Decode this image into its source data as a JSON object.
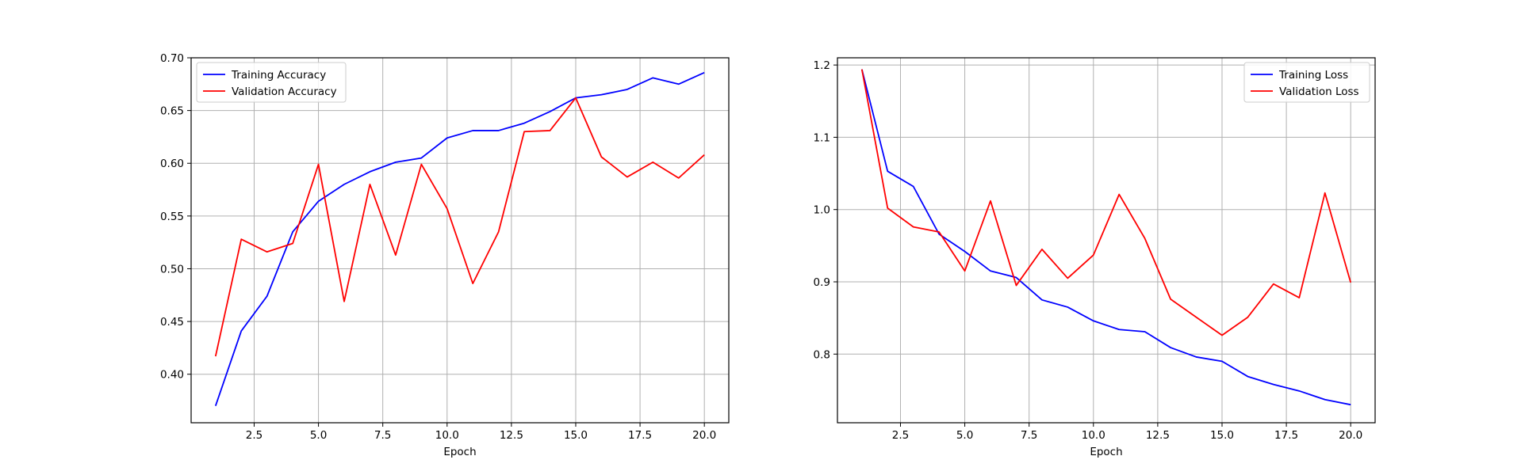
{
  "chart_data": [
    {
      "type": "line",
      "title": "",
      "xlabel": "Epoch",
      "ylabel": "",
      "xlim": [
        0.05,
        20.95
      ],
      "ylim": [
        0.354,
        0.7
      ],
      "xticks": [
        2.5,
        5.0,
        7.5,
        10.0,
        12.5,
        15.0,
        17.5,
        20.0
      ],
      "xtick_labels": [
        "2.5",
        "5.0",
        "7.5",
        "10.0",
        "12.5",
        "15.0",
        "17.5",
        "20.0"
      ],
      "yticks": [
        0.4,
        0.45,
        0.5,
        0.55,
        0.6,
        0.65,
        0.7
      ],
      "ytick_labels": [
        "0.40",
        "0.45",
        "0.50",
        "0.55",
        "0.60",
        "0.65",
        "0.70"
      ],
      "grid": true,
      "legend": "upper-left",
      "x": [
        1,
        2,
        3,
        4,
        5,
        6,
        7,
        8,
        9,
        10,
        11,
        12,
        13,
        14,
        15,
        16,
        17,
        18,
        19,
        20
      ],
      "series": [
        {
          "name": "Training Accuracy",
          "color": "#0000ff",
          "values": [
            0.37,
            0.441,
            0.474,
            0.535,
            0.564,
            0.58,
            0.592,
            0.601,
            0.605,
            0.624,
            0.631,
            0.631,
            0.638,
            0.649,
            0.662,
            0.665,
            0.67,
            0.681,
            0.675,
            0.686
          ]
        },
        {
          "name": "Validation Accuracy",
          "color": "#ff0000",
          "values": [
            0.417,
            0.528,
            0.516,
            0.524,
            0.599,
            0.469,
            0.58,
            0.513,
            0.599,
            0.557,
            0.486,
            0.535,
            0.63,
            0.631,
            0.662,
            0.606,
            0.587,
            0.601,
            0.586,
            0.608
          ]
        }
      ]
    },
    {
      "type": "line",
      "title": "",
      "xlabel": "Epoch",
      "ylabel": "",
      "xlim": [
        0.05,
        20.95
      ],
      "ylim": [
        0.705,
        1.21
      ],
      "xticks": [
        2.5,
        5.0,
        7.5,
        10.0,
        12.5,
        15.0,
        17.5,
        20.0
      ],
      "xtick_labels": [
        "2.5",
        "5.0",
        "7.5",
        "10.0",
        "12.5",
        "15.0",
        "17.5",
        "20.0"
      ],
      "yticks": [
        0.8,
        0.9,
        1.0,
        1.1,
        1.2
      ],
      "ytick_labels": [
        "0.8",
        "0.9",
        "1.0",
        "1.1",
        "1.2"
      ],
      "grid": true,
      "legend": "upper-right",
      "x": [
        1,
        2,
        3,
        4,
        5,
        6,
        7,
        8,
        9,
        10,
        11,
        12,
        13,
        14,
        15,
        16,
        17,
        18,
        19,
        20
      ],
      "series": [
        {
          "name": "Training Loss",
          "color": "#0000ff",
          "values": [
            1.194,
            1.053,
            1.032,
            0.966,
            0.942,
            0.915,
            0.906,
            0.875,
            0.865,
            0.846,
            0.834,
            0.831,
            0.809,
            0.796,
            0.79,
            0.769,
            0.758,
            0.749,
            0.737,
            0.73
          ]
        },
        {
          "name": "Validation Loss",
          "color": "#ff0000",
          "values": [
            1.194,
            1.002,
            0.976,
            0.969,
            0.915,
            1.012,
            0.895,
            0.945,
            0.905,
            0.937,
            1.021,
            0.96,
            0.876,
            0.851,
            0.826,
            0.851,
            0.897,
            0.878,
            1.023,
            0.899
          ]
        }
      ]
    }
  ]
}
